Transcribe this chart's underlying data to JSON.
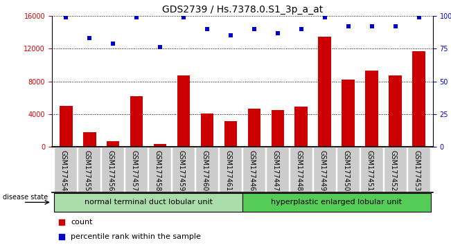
{
  "title": "GDS2739 / Hs.7378.0.S1_3p_a_at",
  "categories": [
    "GSM177454",
    "GSM177455",
    "GSM177456",
    "GSM177457",
    "GSM177458",
    "GSM177459",
    "GSM177460",
    "GSM177461",
    "GSM177446",
    "GSM177447",
    "GSM177448",
    "GSM177449",
    "GSM177450",
    "GSM177451",
    "GSM177452",
    "GSM177453"
  ],
  "counts": [
    5000,
    1800,
    700,
    6200,
    400,
    8700,
    4100,
    3200,
    4700,
    4500,
    4900,
    13500,
    8200,
    9300,
    8700,
    11700
  ],
  "percentiles": [
    99,
    83,
    79,
    99,
    76,
    99,
    90,
    85,
    90,
    87,
    90,
    99,
    92,
    92,
    92,
    99
  ],
  "bar_color": "#cc0000",
  "dot_color": "#0000cc",
  "ylim_left": [
    0,
    16000
  ],
  "ylim_right": [
    0,
    100
  ],
  "yticks_left": [
    0,
    4000,
    8000,
    12000,
    16000
  ],
  "yticks_right": [
    0,
    25,
    50,
    75,
    100
  ],
  "yticklabels_right": [
    "0",
    "25",
    "50",
    "75",
    "100%"
  ],
  "group1_label": "normal terminal duct lobular unit",
  "group2_label": "hyperplastic enlarged lobular unit",
  "group1_count": 8,
  "group2_count": 8,
  "disease_state_label": "disease state",
  "legend_count_label": "count",
  "legend_pct_label": "percentile rank within the sample",
  "group1_color": "#aaddaa",
  "group2_color": "#55cc55",
  "tick_bg_color": "#cccccc",
  "background_color": "#ffffff",
  "title_fontsize": 10,
  "axis_fontsize": 8,
  "label_fontsize": 8,
  "tick_fontsize": 7
}
